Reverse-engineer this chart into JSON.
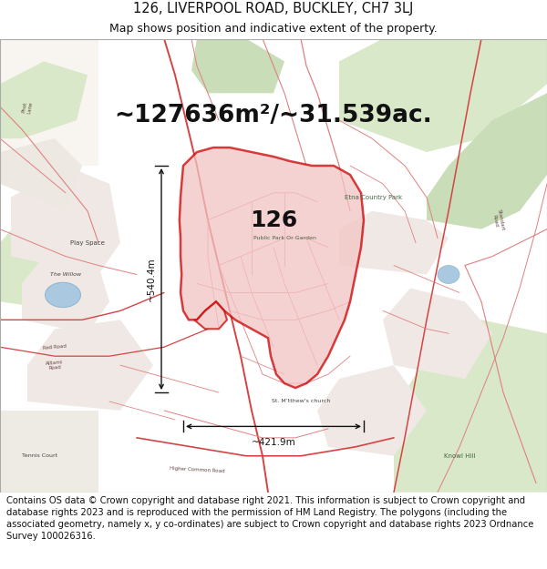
{
  "title": "126, LIVERPOOL ROAD, BUCKLEY, CH7 3LJ",
  "subtitle": "Map shows position and indicative extent of the property.",
  "area_text": "~127636m²/~31.539ac.",
  "label": "126",
  "dim_horizontal": "~421.9m",
  "dim_vertical": "~540.4m",
  "footer": "Contains OS data © Crown copyright and database right 2021. This information is subject to Crown copyright and database rights 2023 and is reproduced with the permission of HM Land Registry. The polygons (including the associated geometry, namely x, y co-ordinates) are subject to Crown copyright and database rights 2023 Ordnance Survey 100026316.",
  "map_bg_color": "#f5f0eb",
  "polygon_fill": "#f2c4c4",
  "polygon_edge": "#cc0000",
  "title_fontsize": 10.5,
  "subtitle_fontsize": 9,
  "area_fontsize": 19,
  "label_fontsize": 18,
  "footer_fontsize": 7.2,
  "arrow_color": "#111111",
  "title_color": "#111111",
  "road_color_main": "#d44444",
  "road_color_thin": "#e08080",
  "urban_color": "#f0e8e4",
  "green_color": "#d8e8c8",
  "green_dark": "#c8ddb8",
  "water_color": "#aac8e0"
}
